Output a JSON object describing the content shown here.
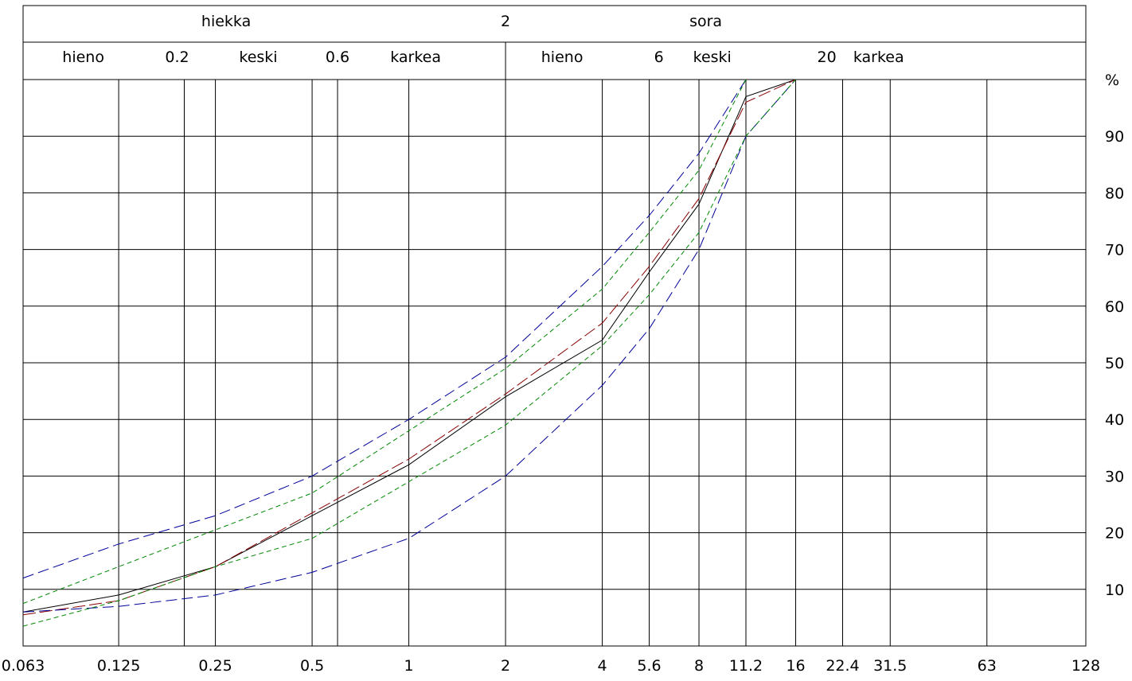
{
  "chart_data": {
    "type": "line",
    "x_scale": "log2",
    "xlim": [
      0.063,
      128
    ],
    "ylim": [
      0,
      100
    ],
    "x_ticks": [
      {
        "value": 0.063,
        "label": "0.063"
      },
      {
        "value": 0.125,
        "label": "0.125"
      },
      {
        "value": 0.25,
        "label": "0.25"
      },
      {
        "value": 0.5,
        "label": "0.5"
      },
      {
        "value": 1,
        "label": "1"
      },
      {
        "value": 2,
        "label": "2"
      },
      {
        "value": 4,
        "label": "4"
      },
      {
        "value": 5.6,
        "label": "5.6"
      },
      {
        "value": 8,
        "label": "8"
      },
      {
        "value": 11.2,
        "label": "11.2"
      },
      {
        "value": 16,
        "label": "16"
      },
      {
        "value": 22.4,
        "label": "22.4"
      },
      {
        "value": 31.5,
        "label": "31.5"
      },
      {
        "value": 63,
        "label": "63"
      },
      {
        "value": 128,
        "label": "128"
      }
    ],
    "y_ticks": [
      {
        "value": 10,
        "label": "10"
      },
      {
        "value": 20,
        "label": "20"
      },
      {
        "value": 30,
        "label": "30"
      },
      {
        "value": 40,
        "label": "40"
      },
      {
        "value": 50,
        "label": "50"
      },
      {
        "value": 60,
        "label": "60"
      },
      {
        "value": 70,
        "label": "70"
      },
      {
        "value": 80,
        "label": "80"
      },
      {
        "value": 90,
        "label": "90"
      }
    ],
    "ylabel": "%",
    "header": {
      "top": [
        {
          "value": 0.27,
          "label": "hiekka"
        },
        {
          "value": 2,
          "label": "2"
        },
        {
          "value": 8.4,
          "label": "sora"
        }
      ],
      "bottom": [
        {
          "value": 0.097,
          "label": "hieno"
        },
        {
          "value": 0.19,
          "label": "0.2"
        },
        {
          "value": 0.34,
          "label": "keski"
        },
        {
          "value": 0.6,
          "label": "0.6"
        },
        {
          "value": 1.05,
          "label": "karkea"
        },
        {
          "value": 3.0,
          "label": "hieno"
        },
        {
          "value": 6,
          "label": "6"
        },
        {
          "value": 8.8,
          "label": "keski"
        },
        {
          "value": 20,
          "label": "20"
        },
        {
          "value": 29,
          "label": "karkea"
        }
      ],
      "dividers": [
        2
      ],
      "box": [
        0.2,
        0.6
      ]
    },
    "series": [
      {
        "color": "#000000",
        "dash": "none",
        "width": 1,
        "x": [
          0.063,
          0.125,
          0.25,
          0.5,
          1,
          2,
          4,
          5.6,
          8,
          11.2,
          16
        ],
        "y": [
          6,
          9,
          14,
          23,
          32,
          44,
          54,
          66,
          78,
          97,
          100
        ]
      },
      {
        "color": "#880000",
        "dash": "16 5",
        "width": 1,
        "x": [
          0.063,
          0.125,
          0.25,
          0.5,
          1,
          2,
          4,
          5.6,
          8,
          11.2,
          16
        ],
        "y": [
          5.5,
          8,
          14,
          23.5,
          33,
          44.5,
          57,
          67,
          79,
          96,
          100
        ]
      },
      {
        "color": "#000099",
        "dash": "14 6",
        "width": 1,
        "x": [
          0.063,
          0.125,
          0.25,
          0.5,
          1,
          2,
          4,
          5.6,
          8,
          11.2,
          16
        ],
        "y": [
          6,
          7,
          9,
          13,
          19,
          30,
          46,
          56,
          70,
          90,
          100
        ]
      },
      {
        "color": "#000099",
        "dash": "14 6",
        "width": 1,
        "x": [
          0.063,
          0.125,
          0.25,
          0.5,
          1,
          2,
          4,
          5.6,
          8,
          11.2
        ],
        "y": [
          12,
          18,
          23,
          30,
          40,
          51,
          67,
          76,
          87,
          100
        ]
      },
      {
        "color": "#008800",
        "dash": "6 4",
        "width": 1,
        "x": [
          0.063,
          0.125,
          0.25,
          0.5,
          1,
          2,
          4,
          5.6,
          8,
          11.2,
          16
        ],
        "y": [
          3.5,
          8,
          14,
          19,
          29,
          39,
          53,
          62,
          73,
          90,
          100
        ]
      },
      {
        "color": "#008800",
        "dash": "6 4",
        "width": 1,
        "x": [
          0.063,
          0.125,
          0.25,
          0.5,
          1,
          2,
          4,
          5.6,
          8,
          11.2
        ],
        "y": [
          7.5,
          14,
          20.5,
          27,
          38,
          49,
          63,
          73,
          84,
          100
        ]
      }
    ]
  }
}
